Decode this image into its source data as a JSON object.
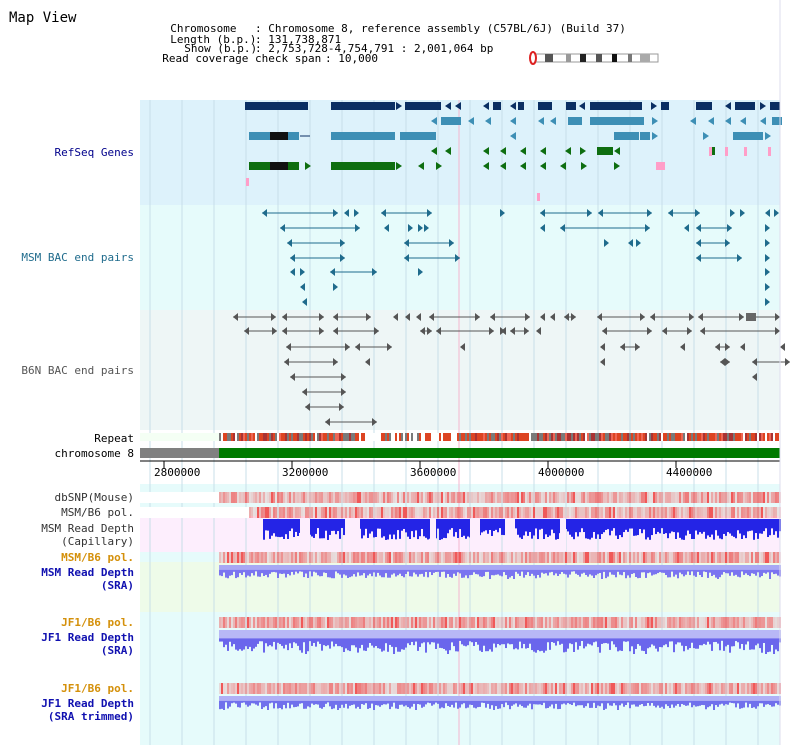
{
  "app_title": "Map View",
  "header": {
    "chromosome_key": "Chromosome",
    "chromosome_val": ": Chromosome 8, reference assembly (C57BL/6J) (Build 37)",
    "length_key": "Length (b.p.)",
    "length_val": ": 131,738,871",
    "show_key": "Show (b.p.)",
    "show_val": ": 2,753,728-4,754,791 : 2,001,064 bp",
    "span_key": "Read coverage check span",
    "span_val": ": 10,000"
  },
  "tracks": {
    "refseq": {
      "label": "RefSeq Genes",
      "color": "#00008b"
    },
    "msm_bac": {
      "label": "MSM BAC end pairs",
      "color": "#1f6b8c"
    },
    "b6n_bac": {
      "label": "B6N BAC end pairs",
      "color": "#555555"
    },
    "repeat": {
      "label": "Repeat",
      "color": "#000000"
    },
    "chromosome": {
      "label": "chromosome 8",
      "color": "#000000"
    },
    "dbsnp": {
      "label": "dbSNP(Mouse)",
      "color": "#333333"
    },
    "msm_b6_pol_1": {
      "label": "MSM/B6 pol.",
      "color": "#333333"
    },
    "msm_depth_cap": {
      "label1": "MSM Read Depth",
      "label2": "(Capillary)",
      "color": "#333333"
    },
    "msm_b6_pol_2": {
      "label": "MSM/B6 pol.",
      "color": "#d4900a"
    },
    "msm_depth_sra": {
      "label1": "MSM Read Depth",
      "label2": "(SRA)",
      "color": "#1010b0"
    },
    "jf1_b6_pol_1": {
      "label": "JF1/B6 pol.",
      "color": "#d4900a"
    },
    "jf1_depth_sra": {
      "label1": "JF1 Read Depth",
      "label2": "(SRA)",
      "color": "#1010b0"
    },
    "jf1_b6_pol_2": {
      "label": "JF1/B6 pol.",
      "color": "#d4900a"
    },
    "jf1_depth_trim": {
      "label1": "JF1 Read Depth",
      "label2": "(SRA trimmed)",
      "color": "#1010b0"
    }
  },
  "axis": {
    "ticks": [
      "2800000",
      "3200000",
      "3600000",
      "4000000",
      "4400000"
    ]
  },
  "colors": {
    "refseq_bg": "#ddf2fb",
    "bac_bg": "#e6fbfb",
    "b6n_bg": "#eef6f6",
    "chrom_bar": "#007a00",
    "gene_dark": "#0b2f63",
    "gene_mid": "#3d8fb5",
    "gene_green": "#0e6e10",
    "pink": "#ff9ec8"
  }
}
